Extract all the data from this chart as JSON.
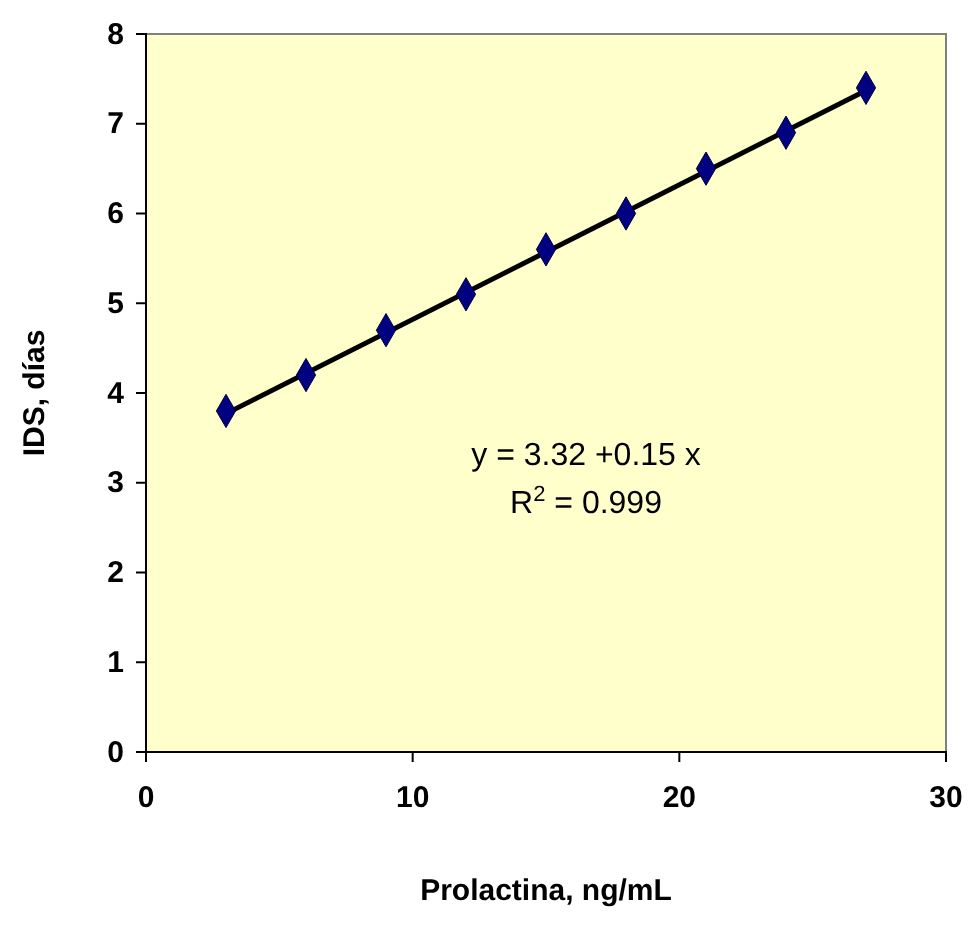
{
  "chart_data": {
    "type": "scatter",
    "xlabel": "Prolactina, ng/mL",
    "ylabel": "IDS, días",
    "x": [
      3,
      6,
      9,
      12,
      15,
      18,
      21,
      24,
      27
    ],
    "series": [
      {
        "color": "#000080",
        "marker": "diamond",
        "values": [
          3.8,
          4.2,
          4.7,
          5.1,
          5.6,
          6.0,
          6.5,
          6.9,
          7.4
        ]
      },
      {
        "type": "line",
        "color": "#000000",
        "x": [
          3,
          27
        ],
        "values": [
          3.77,
          7.37
        ]
      }
    ],
    "xlim": [
      0,
      30
    ],
    "xticks": [
      0,
      10,
      20,
      30
    ],
    "ylim": [
      0,
      8
    ],
    "yticks": [
      0,
      1,
      2,
      3,
      4,
      5,
      6,
      7,
      8
    ],
    "grid": false,
    "annotations": [
      "y = 3.32 +0.15 x",
      "R$^{2}$ = 0.999"
    ]
  }
}
